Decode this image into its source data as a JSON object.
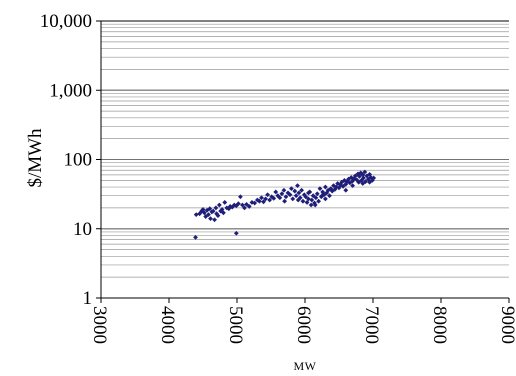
{
  "chart_data": {
    "type": "scatter",
    "title": "",
    "xlabel": "MW",
    "ylabel": "$/MWh",
    "xlim": [
      3000,
      9000
    ],
    "ylim": [
      1,
      10000
    ],
    "y_scale": "log",
    "x_ticks": [
      "3000",
      "4000",
      "5000",
      "6000",
      "7000",
      "8000",
      "9000"
    ],
    "y_ticks": [
      "1",
      "10",
      "100",
      "1,000",
      "10,000"
    ],
    "grid": "horizontal minor and major gridlines",
    "legend": "none",
    "marker_color": "#1f1f7a",
    "points": [
      [
        4390,
        7.5
      ],
      [
        4990,
        8.6
      ],
      [
        4400,
        16
      ],
      [
        4450,
        16.5
      ],
      [
        4480,
        18
      ],
      [
        4500,
        19
      ],
      [
        4520,
        17
      ],
      [
        4540,
        15
      ],
      [
        4560,
        18.5
      ],
      [
        4580,
        16
      ],
      [
        4600,
        19.5
      ],
      [
        4610,
        14
      ],
      [
        4630,
        17.5
      ],
      [
        4650,
        18
      ],
      [
        4670,
        13.5
      ],
      [
        4690,
        20
      ],
      [
        4700,
        16.5
      ],
      [
        4720,
        15.5
      ],
      [
        4740,
        22
      ],
      [
        4760,
        18
      ],
      [
        4780,
        19
      ],
      [
        4800,
        17
      ],
      [
        4820,
        24
      ],
      [
        4850,
        20
      ],
      [
        4880,
        19.5
      ],
      [
        4900,
        21
      ],
      [
        4930,
        20.5
      ],
      [
        4960,
        22
      ],
      [
        4990,
        21.5
      ],
      [
        5020,
        23
      ],
      [
        5050,
        29
      ],
      [
        5080,
        22
      ],
      [
        5110,
        20
      ],
      [
        5140,
        22.5
      ],
      [
        5180,
        21
      ],
      [
        5220,
        24
      ],
      [
        5260,
        23.5
      ],
      [
        5300,
        26
      ],
      [
        5330,
        25
      ],
      [
        5360,
        28
      ],
      [
        5390,
        24.5
      ],
      [
        5420,
        27
      ],
      [
        5450,
        31
      ],
      [
        5480,
        26
      ],
      [
        5510,
        29
      ],
      [
        5540,
        27.5
      ],
      [
        5570,
        34
      ],
      [
        5600,
        30
      ],
      [
        5630,
        28
      ],
      [
        5660,
        32
      ],
      [
        5690,
        36
      ],
      [
        5720,
        29
      ],
      [
        5750,
        33
      ],
      [
        5780,
        31
      ],
      [
        5800,
        38
      ],
      [
        5820,
        27
      ],
      [
        5850,
        35
      ],
      [
        5870,
        30
      ],
      [
        5890,
        42
      ],
      [
        5910,
        33
      ],
      [
        5930,
        28
      ],
      [
        5950,
        36
      ],
      [
        5970,
        25
      ],
      [
        5990,
        31
      ],
      [
        6010,
        29
      ],
      [
        6030,
        24
      ],
      [
        6050,
        27
      ],
      [
        6070,
        34
      ],
      [
        6090,
        22
      ],
      [
        6100,
        26
      ],
      [
        6120,
        30
      ],
      [
        6140,
        23.5
      ],
      [
        6160,
        28
      ],
      [
        6180,
        32
      ],
      [
        6200,
        25
      ],
      [
        6220,
        38
      ],
      [
        6240,
        29
      ],
      [
        6260,
        34
      ],
      [
        6280,
        31
      ],
      [
        6300,
        40
      ],
      [
        6320,
        33
      ],
      [
        6340,
        36
      ],
      [
        6360,
        30
      ],
      [
        6380,
        38
      ],
      [
        6400,
        35
      ],
      [
        6420,
        42
      ],
      [
        6440,
        37
      ],
      [
        6460,
        40
      ],
      [
        6480,
        45
      ],
      [
        6500,
        39
      ],
      [
        6520,
        43
      ],
      [
        6540,
        47
      ],
      [
        6560,
        41
      ],
      [
        6580,
        50
      ],
      [
        6600,
        44
      ],
      [
        6620,
        48
      ],
      [
        6640,
        52
      ],
      [
        6660,
        46
      ],
      [
        6680,
        55
      ],
      [
        6700,
        49
      ],
      [
        6720,
        53
      ],
      [
        6740,
        58
      ],
      [
        6760,
        51
      ],
      [
        6780,
        62
      ],
      [
        6790,
        47
      ],
      [
        6800,
        57
      ],
      [
        6820,
        64
      ],
      [
        6830,
        50
      ],
      [
        6850,
        60
      ],
      [
        6860,
        54
      ],
      [
        6880,
        66
      ],
      [
        6890,
        48
      ],
      [
        6910,
        58
      ],
      [
        6930,
        52
      ],
      [
        6950,
        61
      ],
      [
        6970,
        55
      ],
      [
        6990,
        50
      ],
      [
        7010,
        54
      ],
      [
        6300,
        27
      ],
      [
        6250,
        30
      ],
      [
        6150,
        22
      ],
      [
        6050,
        33
      ],
      [
        5900,
        26
      ],
      [
        6600,
        36
      ],
      [
        6700,
        42
      ],
      [
        6850,
        45
      ],
      [
        6950,
        47
      ],
      [
        5700,
        25
      ]
    ]
  }
}
